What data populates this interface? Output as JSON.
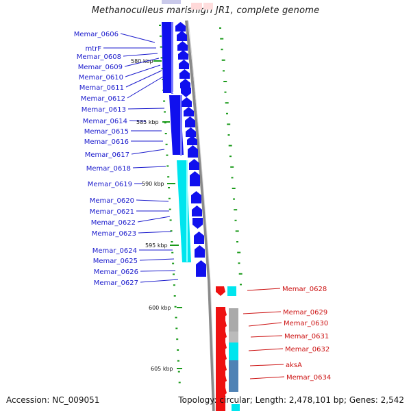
{
  "title": "Methanoculleus marisnigri JR1, complete genome",
  "footer": {
    "accession": "Accession: NC_009051",
    "topology": "Topology: circular; Length: 2,478,101 bp; Genes: 2,542"
  },
  "colors": {
    "blue_gene": "#1010ee",
    "cyan_gene": "#00e5ee",
    "red_gene": "#ee1111",
    "backbone": "#8a8a8a",
    "tick": "#1a9a1a",
    "left_label": "#1a1acc",
    "right_label": "#cc1111"
  },
  "scale_labels": [
    "580 kbp",
    "585 kbp",
    "590 kbp",
    "595 kbp",
    "600 kbp",
    "605 kbp"
  ],
  "left_genes": [
    "Memar_0606",
    "mtrF",
    "Memar_0608",
    "Memar_0609",
    "Memar_0610",
    "Memar_0611",
    "Memar_0612",
    "Memar_0613",
    "Memar_0614",
    "Memar_0615",
    "Memar_0616",
    "Memar_0617",
    "Memar_0618",
    "Memar_0619",
    "Memar_0620",
    "Memar_0621",
    "Memar_0622",
    "Memar_0623",
    "Memar_0624",
    "Memar_0625",
    "Memar_0626",
    "Memar_0627"
  ],
  "right_genes": [
    "Memar_0628",
    "Memar_0629",
    "Memar_0630",
    "Memar_0631",
    "Memar_0632",
    "aksA",
    "Memar_0634"
  ]
}
